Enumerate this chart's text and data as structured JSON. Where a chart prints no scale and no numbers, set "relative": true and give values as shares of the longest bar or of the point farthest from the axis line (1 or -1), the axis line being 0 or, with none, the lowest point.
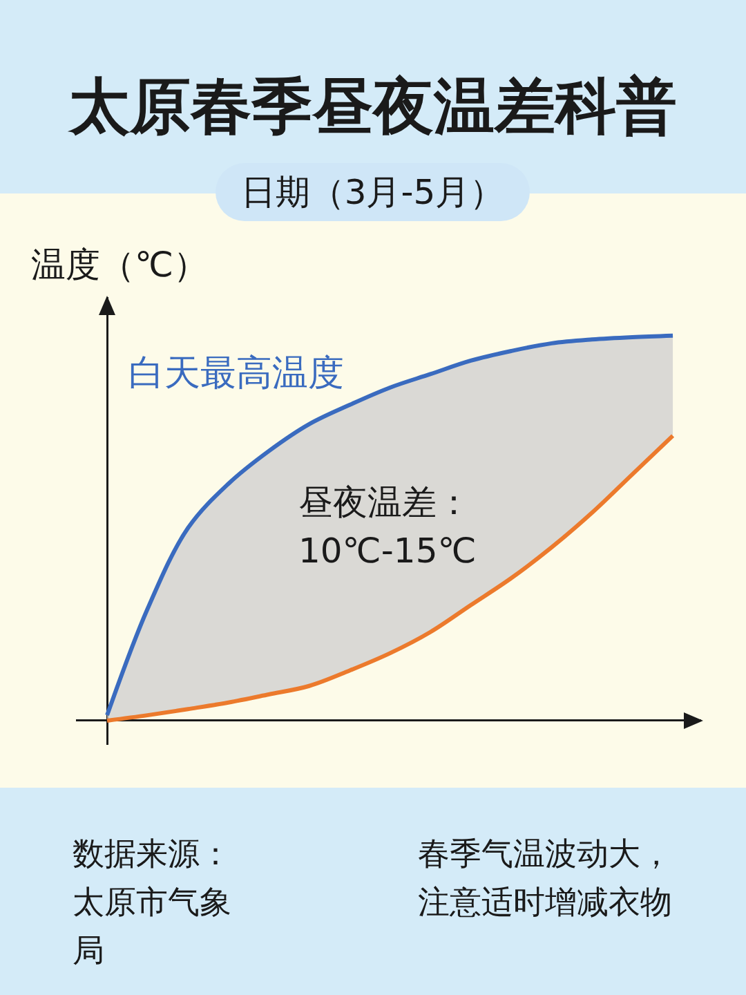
{
  "chart_data": {
    "type": "line",
    "title": "太原春季昼夜温差科普",
    "subtitle": "日期（3月-5月）",
    "ylabel": "温度（℃）",
    "relative": true,
    "categories": [
      null,
      null,
      null,
      null,
      null,
      null,
      null,
      null,
      null,
      null,
      null,
      null,
      null,
      null,
      null
    ],
    "series": [
      {
        "color": "#ec7a2c",
        "values": [
          0,
          0.014,
          0.03,
          0.047,
          0.068,
          0.09,
          0.13,
          0.175,
          0.23,
          0.3,
          0.37,
          0.45,
          0.54,
          0.64,
          0.74
        ]
      },
      {
        "name": "白天最高温度",
        "color": "#3a6bbf",
        "values": [
          0.014,
          0.29,
          0.5,
          0.615,
          0.7,
          0.77,
          0.82,
          0.865,
          0.9,
          0.935,
          0.96,
          0.98,
          0.99,
          0.996,
          1
        ],
        "lower": [
          0,
          0.014,
          0.03,
          0.047,
          0.068,
          0.09,
          0.13,
          0.175,
          0.23,
          0.3,
          0.37,
          0.45,
          0.54,
          0.64,
          0.74
        ],
        "upper": [
          0.014,
          0.29,
          0.5,
          0.615,
          0.7,
          0.77,
          0.82,
          0.865,
          0.9,
          0.935,
          0.96,
          0.98,
          0.99,
          0.996,
          1
        ]
      }
    ],
    "annotations": [
      "昼夜温差：10℃-15℃",
      "数据来源：太原市气象局",
      "春季气温波动大，注意适时增减衣物"
    ],
    "legend": false,
    "marker": "none",
    "line_style": "solid"
  }
}
